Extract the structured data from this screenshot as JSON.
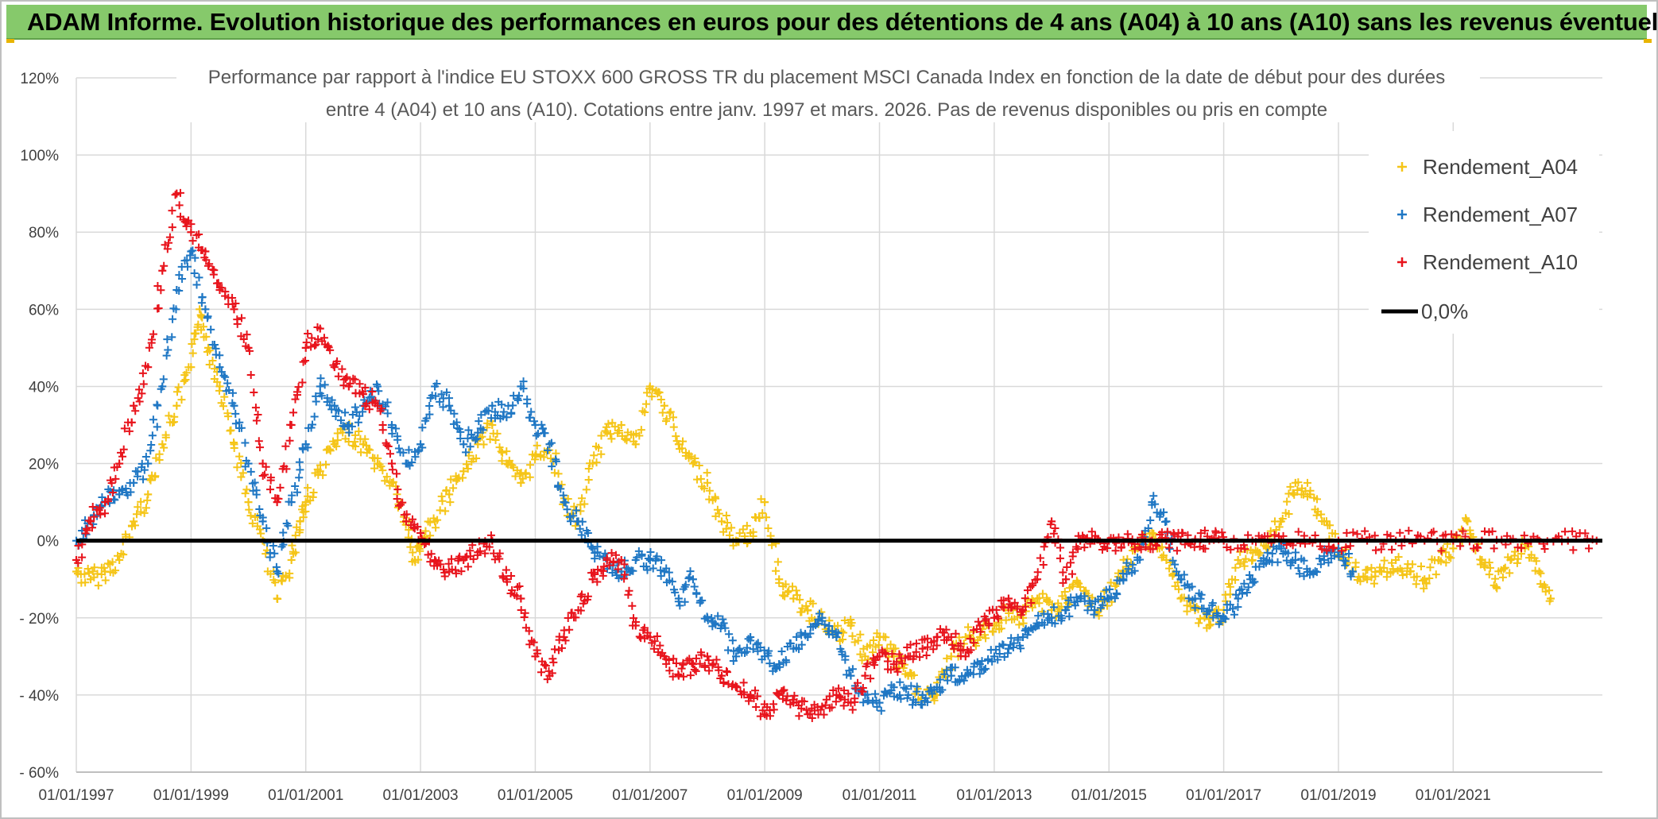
{
  "banner": {
    "title": "ADAM Informe. Evolution historique des performances en euros pour des détentions de 4 ans (A04) à 10 ans (A10) sans les revenus éventuels"
  },
  "colors": {
    "banner_bg": "#86c96b",
    "A04": "#f5c518",
    "A07": "#1f77c4",
    "A10": "#e8141c",
    "zero_line": "#000000",
    "grid": "#d9d9d9"
  },
  "chart_data": {
    "type": "scatter",
    "title_line1": "Performance par rapport à l'indice EU STOXX 600 GROSS TR  du placement MSCI Canada Index en fonction de la date de début pour des durées",
    "title_line2": "entre 4 (A04) et 10 ans (A10). Cotations entre janv. 1997 et mars. 2026. Pas de revenus disponibles ou pris en compte",
    "xlabel": "",
    "ylabel": "",
    "x_ticks": [
      "01/01/1997",
      "01/01/1999",
      "01/01/2001",
      "01/01/2003",
      "01/01/2005",
      "01/01/2007",
      "01/01/2009",
      "01/01/2011",
      "01/01/2013",
      "01/01/2015",
      "01/01/2017",
      "01/01/2019",
      "01/01/2021"
    ],
    "y_ticks": [
      "120%",
      "100%",
      "80%",
      "60%",
      "40%",
      "20%",
      "0%",
      "- 20%",
      "- 40%",
      "- 60%"
    ],
    "ylim": [
      -60,
      120
    ],
    "xlim": [
      1997.0,
      2023.6
    ],
    "marker": "+",
    "legend": {
      "position": "top-right",
      "entries": [
        "Rendement_A04",
        "Rendement_A07",
        "Rendement_A10",
        "0,0%"
      ]
    },
    "series": [
      {
        "name": "Rendement_A04",
        "x": [
          1997.0,
          1997.25,
          1997.5,
          1997.75,
          1998.0,
          1998.25,
          1998.5,
          1998.75,
          1999.0,
          1999.15,
          1999.3,
          1999.5,
          1999.75,
          2000.0,
          2000.25,
          2000.5,
          2000.75,
          2000.9,
          2001.0,
          2001.25,
          2001.5,
          2001.75,
          2002.0,
          2002.25,
          2002.5,
          2002.75,
          2002.9,
          2003.0,
          2003.25,
          2003.5,
          2003.75,
          2004.0,
          2004.25,
          2004.5,
          2004.75,
          2005.0,
          2005.25,
          2005.5,
          2005.75,
          2006.0,
          2006.25,
          2006.5,
          2006.75,
          2007.0,
          2007.25,
          2007.5,
          2007.75,
          2008.0,
          2008.25,
          2008.5,
          2008.75,
          2009.0,
          2009.25,
          2009.5,
          2009.75,
          2010.0,
          2010.25,
          2010.5,
          2010.75,
          2011.0,
          2011.25,
          2011.5,
          2011.75,
          2012.0,
          2012.25,
          2012.5,
          2012.75,
          2013.0,
          2013.25,
          2013.5,
          2013.75,
          2014.0,
          2014.25,
          2014.5,
          2014.75,
          2015.0,
          2015.25,
          2015.5,
          2015.75,
          2016.0,
          2016.25,
          2016.5,
          2016.75,
          2017.0,
          2017.25,
          2017.5,
          2017.75,
          2018.0,
          2018.25,
          2018.5,
          2018.75,
          2019.0,
          2019.25,
          2019.5,
          2019.75,
          2020.0,
          2020.25,
          2020.5,
          2020.75,
          2021.0,
          2021.25,
          2021.5,
          2021.75,
          2022.0,
          2022.25,
          2022.5,
          2022.7
        ],
        "values": [
          -8,
          -10,
          -8,
          -5,
          5,
          12,
          25,
          35,
          45,
          60,
          50,
          40,
          25,
          10,
          0,
          -15,
          -5,
          5,
          10,
          18,
          25,
          28,
          25,
          20,
          15,
          5,
          -5,
          0,
          5,
          12,
          18,
          25,
          30,
          20,
          15,
          22,
          25,
          10,
          5,
          20,
          28,
          30,
          25,
          40,
          35,
          25,
          20,
          15,
          5,
          0,
          2,
          10,
          -10,
          -15,
          -18,
          -20,
          -25,
          -22,
          -30,
          -25,
          -30,
          -35,
          -40,
          -40,
          -30,
          -25,
          -25,
          -22,
          -18,
          -20,
          -15,
          -18,
          -15,
          -12,
          -18,
          -15,
          -8,
          -2,
          2,
          -5,
          -15,
          -18,
          -22,
          -18,
          -5,
          -5,
          -2,
          5,
          15,
          12,
          5,
          -2,
          -8,
          -10,
          -8,
          -5,
          -8,
          -10,
          -5,
          -2,
          5,
          -5,
          -12,
          -5,
          -2,
          -8,
          -15
        ]
      },
      {
        "name": "Rendement_A07",
        "x": [
          1997.0,
          1997.25,
          1997.5,
          1997.75,
          1998.0,
          1998.25,
          1998.5,
          1998.75,
          1999.0,
          1999.25,
          1999.5,
          1999.75,
          2000.0,
          2000.25,
          2000.5,
          2000.75,
          2001.0,
          2001.25,
          2001.5,
          2001.75,
          2002.0,
          2002.25,
          2002.5,
          2002.75,
          2003.0,
          2003.25,
          2003.5,
          2003.75,
          2004.0,
          2004.25,
          2004.5,
          2004.75,
          2005.0,
          2005.25,
          2005.5,
          2005.75,
          2006.0,
          2006.25,
          2006.5,
          2006.75,
          2007.0,
          2007.25,
          2007.5,
          2007.75,
          2008.0,
          2008.25,
          2008.5,
          2008.75,
          2009.0,
          2009.25,
          2009.5,
          2009.75,
          2010.0,
          2010.25,
          2010.5,
          2010.75,
          2011.0,
          2011.25,
          2011.5,
          2011.75,
          2012.0,
          2012.25,
          2012.5,
          2012.75,
          2013.0,
          2013.25,
          2013.5,
          2013.75,
          2014.0,
          2014.25,
          2014.5,
          2014.75,
          2015.0,
          2015.25,
          2015.5,
          2015.75,
          2016.0,
          2016.25,
          2016.5,
          2016.75,
          2017.0,
          2017.25,
          2017.5,
          2017.75,
          2018.0,
          2018.25,
          2018.5,
          2018.75,
          2019.0,
          2019.25
        ],
        "values": [
          0,
          5,
          10,
          12,
          15,
          20,
          40,
          65,
          75,
          60,
          45,
          35,
          20,
          5,
          -8,
          10,
          25,
          40,
          35,
          30,
          35,
          40,
          30,
          20,
          25,
          40,
          35,
          25,
          28,
          35,
          32,
          40,
          30,
          25,
          10,
          5,
          -2,
          -5,
          -8,
          -5,
          -5,
          -8,
          -15,
          -10,
          -20,
          -22,
          -30,
          -25,
          -30,
          -32,
          -28,
          -25,
          -20,
          -25,
          -35,
          -40,
          -42,
          -38,
          -40,
          -40,
          -38,
          -35,
          -35,
          -32,
          -30,
          -28,
          -25,
          -22,
          -20,
          -18,
          -15,
          -18,
          -15,
          -10,
          -5,
          10,
          5,
          -10,
          -15,
          -18,
          -20,
          -15,
          -10,
          -5,
          -2,
          -5,
          -8,
          -5,
          -2,
          -8
        ]
      },
      {
        "name": "Rendement_A10",
        "x": [
          1997.0,
          1997.25,
          1997.5,
          1997.75,
          1998.0,
          1998.25,
          1998.5,
          1998.75,
          1999.0,
          1999.25,
          1999.5,
          1999.75,
          2000.0,
          2000.25,
          2000.5,
          2000.75,
          2001.0,
          2001.25,
          2001.5,
          2001.75,
          2002.0,
          2002.25,
          2002.5,
          2002.75,
          2003.0,
          2003.25,
          2003.5,
          2003.75,
          2004.0,
          2004.25,
          2004.5,
          2004.75,
          2005.0,
          2005.25,
          2005.5,
          2005.75,
          2006.0,
          2006.25,
          2006.5,
          2006.75,
          2007.0,
          2007.25,
          2007.5,
          2007.75,
          2008.0,
          2008.25,
          2008.5,
          2008.75,
          2009.0,
          2009.25,
          2009.5,
          2009.75,
          2010.0,
          2010.25,
          2010.5,
          2010.75,
          2011.0,
          2011.25,
          2011.5,
          2011.75,
          2012.0,
          2012.25,
          2012.5,
          2012.75,
          2013.0,
          2013.25,
          2013.5,
          2013.75,
          2014.0,
          2014.25,
          2014.5,
          2014.75,
          2015.0,
          2015.25,
          2015.5,
          2015.75,
          2016.0,
          2016.25,
          2016.5,
          2016.75,
          2017.0,
          2017.5,
          2018.0,
          2018.5,
          2019.0,
          2019.5,
          2020.0,
          2020.5,
          2021.0,
          2021.5,
          2022.0,
          2022.5,
          2023.0,
          2023.5
        ],
        "values": [
          -5,
          5,
          10,
          20,
          35,
          45,
          70,
          90,
          80,
          75,
          65,
          60,
          50,
          20,
          10,
          30,
          50,
          55,
          45,
          40,
          38,
          35,
          20,
          5,
          2,
          -5,
          -8,
          -5,
          -3,
          0,
          -10,
          -15,
          -30,
          -35,
          -25,
          -18,
          -10,
          -5,
          -5,
          -22,
          -25,
          -30,
          -35,
          -32,
          -30,
          -35,
          -38,
          -40,
          -45,
          -40,
          -42,
          -45,
          -43,
          -40,
          -42,
          -35,
          -30,
          -32,
          -30,
          -28,
          -25,
          -25,
          -30,
          -22,
          -20,
          -15,
          -18,
          -10,
          5,
          -10,
          0,
          0,
          0,
          0,
          0,
          0,
          0,
          0,
          0,
          0,
          0,
          0,
          0,
          0,
          0,
          0,
          0,
          0,
          0,
          0,
          0,
          0,
          0,
          0
        ]
      }
    ]
  }
}
